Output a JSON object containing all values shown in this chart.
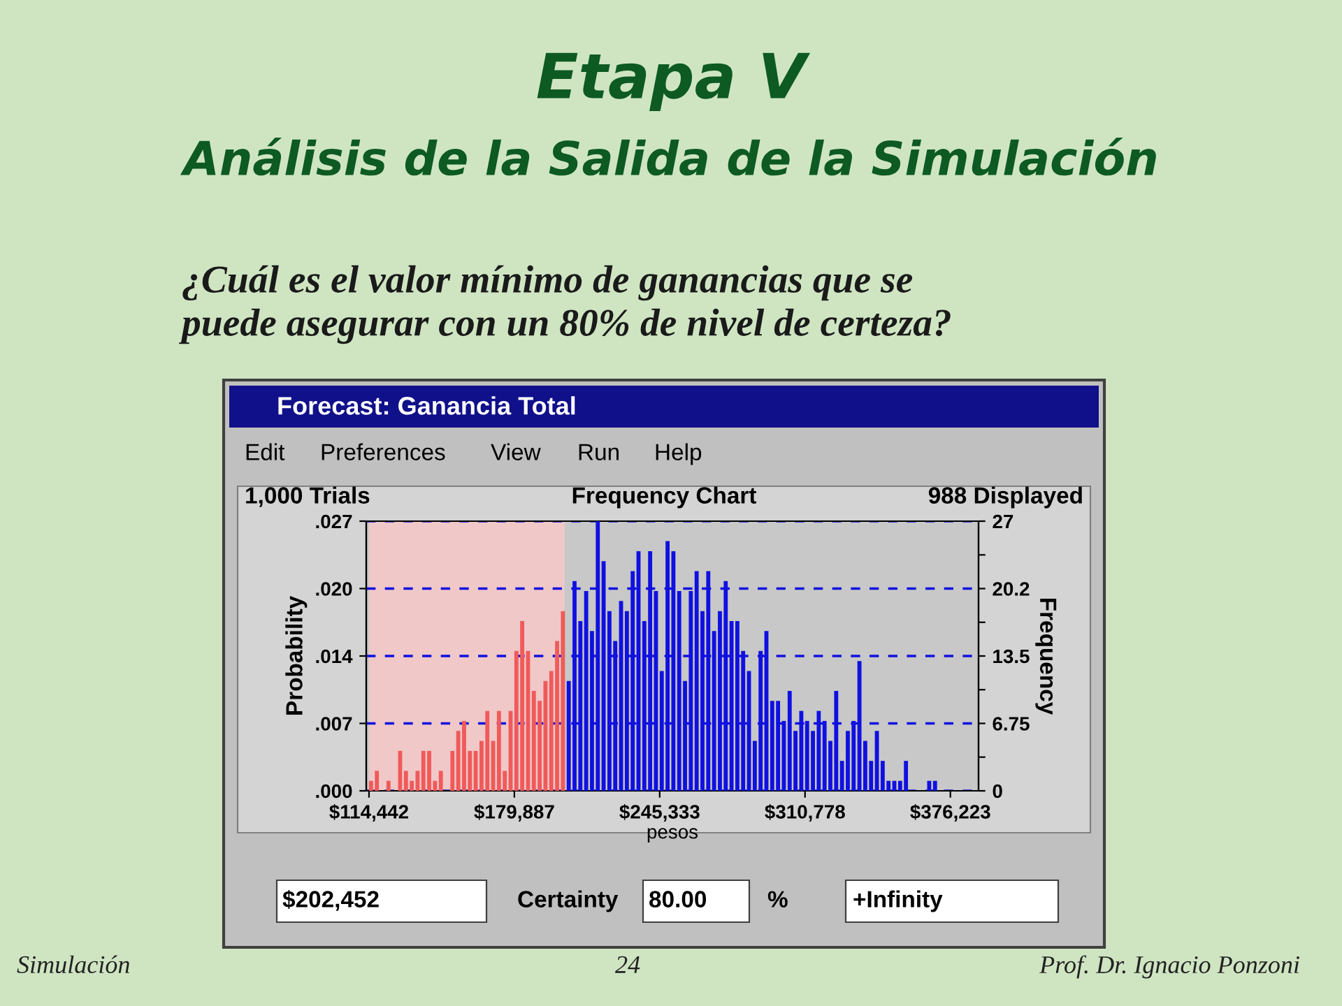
{
  "chart_data": {
    "type": "histogram",
    "title": "Etapa V",
    "subtitle": "Análisis de la Salida de la Simulación",
    "xlabel": "pesos",
    "ylabel": "Probability",
    "y2label": "Frequency",
    "annotations": [
      "¿Cuál es el valor mínimo de ganancias que se\npuede asegurar con un 80% de nivel de certeza?",
      "Forecast: Ganancia Total",
      "Edit",
      "Preferences",
      "View",
      "Run",
      "Help",
      "1,000 Trials",
      "Frequency Chart",
      "988 Displayed",
      "$202,452",
      "Certainty",
      "80.00",
      "%",
      "+Infinity",
      "Simulación",
      "24",
      "Prof. Dr. Ignacio Ponzoni"
    ],
    "bins": [
      114442,
      117060,
      119678,
      122296,
      124914,
      127532,
      130150,
      132768,
      135386,
      138004,
      140622,
      143240,
      145858,
      148476,
      151094,
      153712,
      156330,
      158948,
      161566,
      164184,
      166802,
      169420,
      172038,
      174656,
      177274,
      179892,
      182510,
      185128,
      187746,
      190364,
      192982,
      195600,
      198218,
      200836,
      203454,
      206072,
      208690,
      211308,
      213926,
      216544,
      219162,
      221780,
      224398,
      227016,
      229634,
      232252,
      234870,
      237488,
      240106,
      242724,
      245342,
      247960,
      250578,
      253196,
      255814,
      258432,
      261050,
      263668,
      266286,
      268904,
      271522,
      274140,
      276758,
      279376,
      281994,
      284612,
      287230,
      289848,
      292466,
      295084,
      297702,
      300320,
      302938,
      305556,
      308174,
      310792,
      313410,
      316028,
      318646,
      321264,
      323882,
      326500,
      329118,
      331736,
      334354,
      336972,
      339590,
      342208,
      344826,
      347444,
      350062,
      352680,
      355298,
      357916,
      360534,
      363152,
      365770,
      368388,
      371006,
      373624,
      376242
    ],
    "series": [
      {
        "axis": "y2",
        "values": [
          1,
          2,
          0,
          1,
          0,
          4,
          2,
          1,
          2,
          4,
          4,
          1,
          2,
          0,
          4,
          6,
          7,
          4,
          4,
          5,
          8,
          5,
          8,
          2,
          8,
          14,
          17,
          14,
          10,
          9,
          11,
          12,
          15,
          18,
          11,
          21,
          17,
          20,
          16,
          27,
          23,
          18,
          15,
          19,
          18,
          22,
          24,
          17,
          24,
          20,
          12,
          25,
          24,
          20,
          11,
          20,
          22,
          18,
          22,
          16,
          18,
          21,
          17,
          17,
          14,
          12,
          5,
          14,
          16,
          9,
          9,
          7,
          10,
          6,
          8,
          7,
          6,
          8,
          7,
          5,
          10,
          3,
          6,
          7,
          13,
          5,
          3,
          6,
          3,
          1,
          1,
          1,
          3,
          0,
          0,
          0,
          1,
          1,
          0,
          0
        ],
        "colors": [
          "#f05a5a",
          "#f05a5a",
          "#f05a5a",
          "#f05a5a",
          "#f05a5a",
          "#f05a5a",
          "#f05a5a",
          "#f05a5a",
          "#f05a5a",
          "#f05a5a",
          "#f05a5a",
          "#f05a5a",
          "#f05a5a",
          "#f05a5a",
          "#f05a5a",
          "#f05a5a",
          "#f05a5a",
          "#f05a5a",
          "#f05a5a",
          "#f05a5a",
          "#f05a5a",
          "#f05a5a",
          "#f05a5a",
          "#f05a5a",
          "#f05a5a",
          "#f05a5a",
          "#f05a5a",
          "#f05a5a",
          "#f05a5a",
          "#f05a5a",
          "#f05a5a",
          "#f05a5a",
          "#f05a5a",
          "#f05a5a",
          "#1010e0",
          "#1010e0",
          "#1010e0",
          "#1010e0",
          "#1010e0",
          "#1010e0",
          "#1010e0",
          "#1010e0",
          "#1010e0",
          "#1010e0",
          "#1010e0",
          "#1010e0",
          "#1010e0",
          "#1010e0",
          "#1010e0",
          "#1010e0",
          "#1010e0",
          "#1010e0",
          "#1010e0",
          "#1010e0",
          "#1010e0",
          "#1010e0",
          "#1010e0",
          "#1010e0",
          "#1010e0",
          "#1010e0",
          "#1010e0",
          "#1010e0",
          "#1010e0",
          "#1010e0",
          "#1010e0",
          "#1010e0",
          "#1010e0",
          "#1010e0",
          "#1010e0",
          "#1010e0",
          "#1010e0",
          "#1010e0",
          "#1010e0",
          "#1010e0",
          "#1010e0",
          "#1010e0",
          "#1010e0",
          "#1010e0",
          "#1010e0",
          "#1010e0",
          "#1010e0",
          "#1010e0",
          "#1010e0",
          "#1010e0",
          "#1010e0",
          "#1010e0",
          "#1010e0",
          "#1010e0",
          "#1010e0",
          "#1010e0",
          "#1010e0",
          "#1010e0",
          "#1010e0",
          "#1010e0",
          "#1010e0",
          "#1010e0",
          "#1010e0",
          "#1010e0",
          "#1010e0",
          "#1010e0"
        ]
      }
    ],
    "xlim": [
      113200,
      388900
    ],
    "xticks": [
      {
        "value": 114442,
        "label": "$114,442"
      },
      {
        "value": 179887,
        "label": "$179,887"
      },
      {
        "value": 245333,
        "label": "$245,333"
      },
      {
        "value": 310778,
        "label": "$310,778"
      },
      {
        "value": 376223,
        "label": "$376,223"
      }
    ],
    "ylim": [
      0,
      0.027
    ],
    "yticks": [
      {
        "value": 0,
        "label": ".000"
      },
      {
        "value": 0.00675,
        "label": ".007"
      },
      {
        "value": 0.0135,
        "label": ".014"
      },
      {
        "value": 0.02025,
        "label": ".020"
      },
      {
        "value": 0.027,
        "label": ".027"
      }
    ],
    "y2lim": [
      0,
      27
    ],
    "y2ticks": [
      0,
      {
        "value": 3.375,
        "label": null
      },
      6.75,
      {
        "value": 10.125,
        "label": null
      },
      13.5,
      {
        "value": 16.875,
        "label": null
      },
      {
        "value": 20.25,
        "label": "20.2"
      },
      {
        "value": 23.625,
        "label": null
      },
      27
    ],
    "bands": [
      {
        "axis": "x",
        "from": 114442,
        "to": 202452,
        "color": "#f0c8c8"
      }
    ],
    "grid": "y",
    "line_style": "dashed",
    "legend": false
  }
}
